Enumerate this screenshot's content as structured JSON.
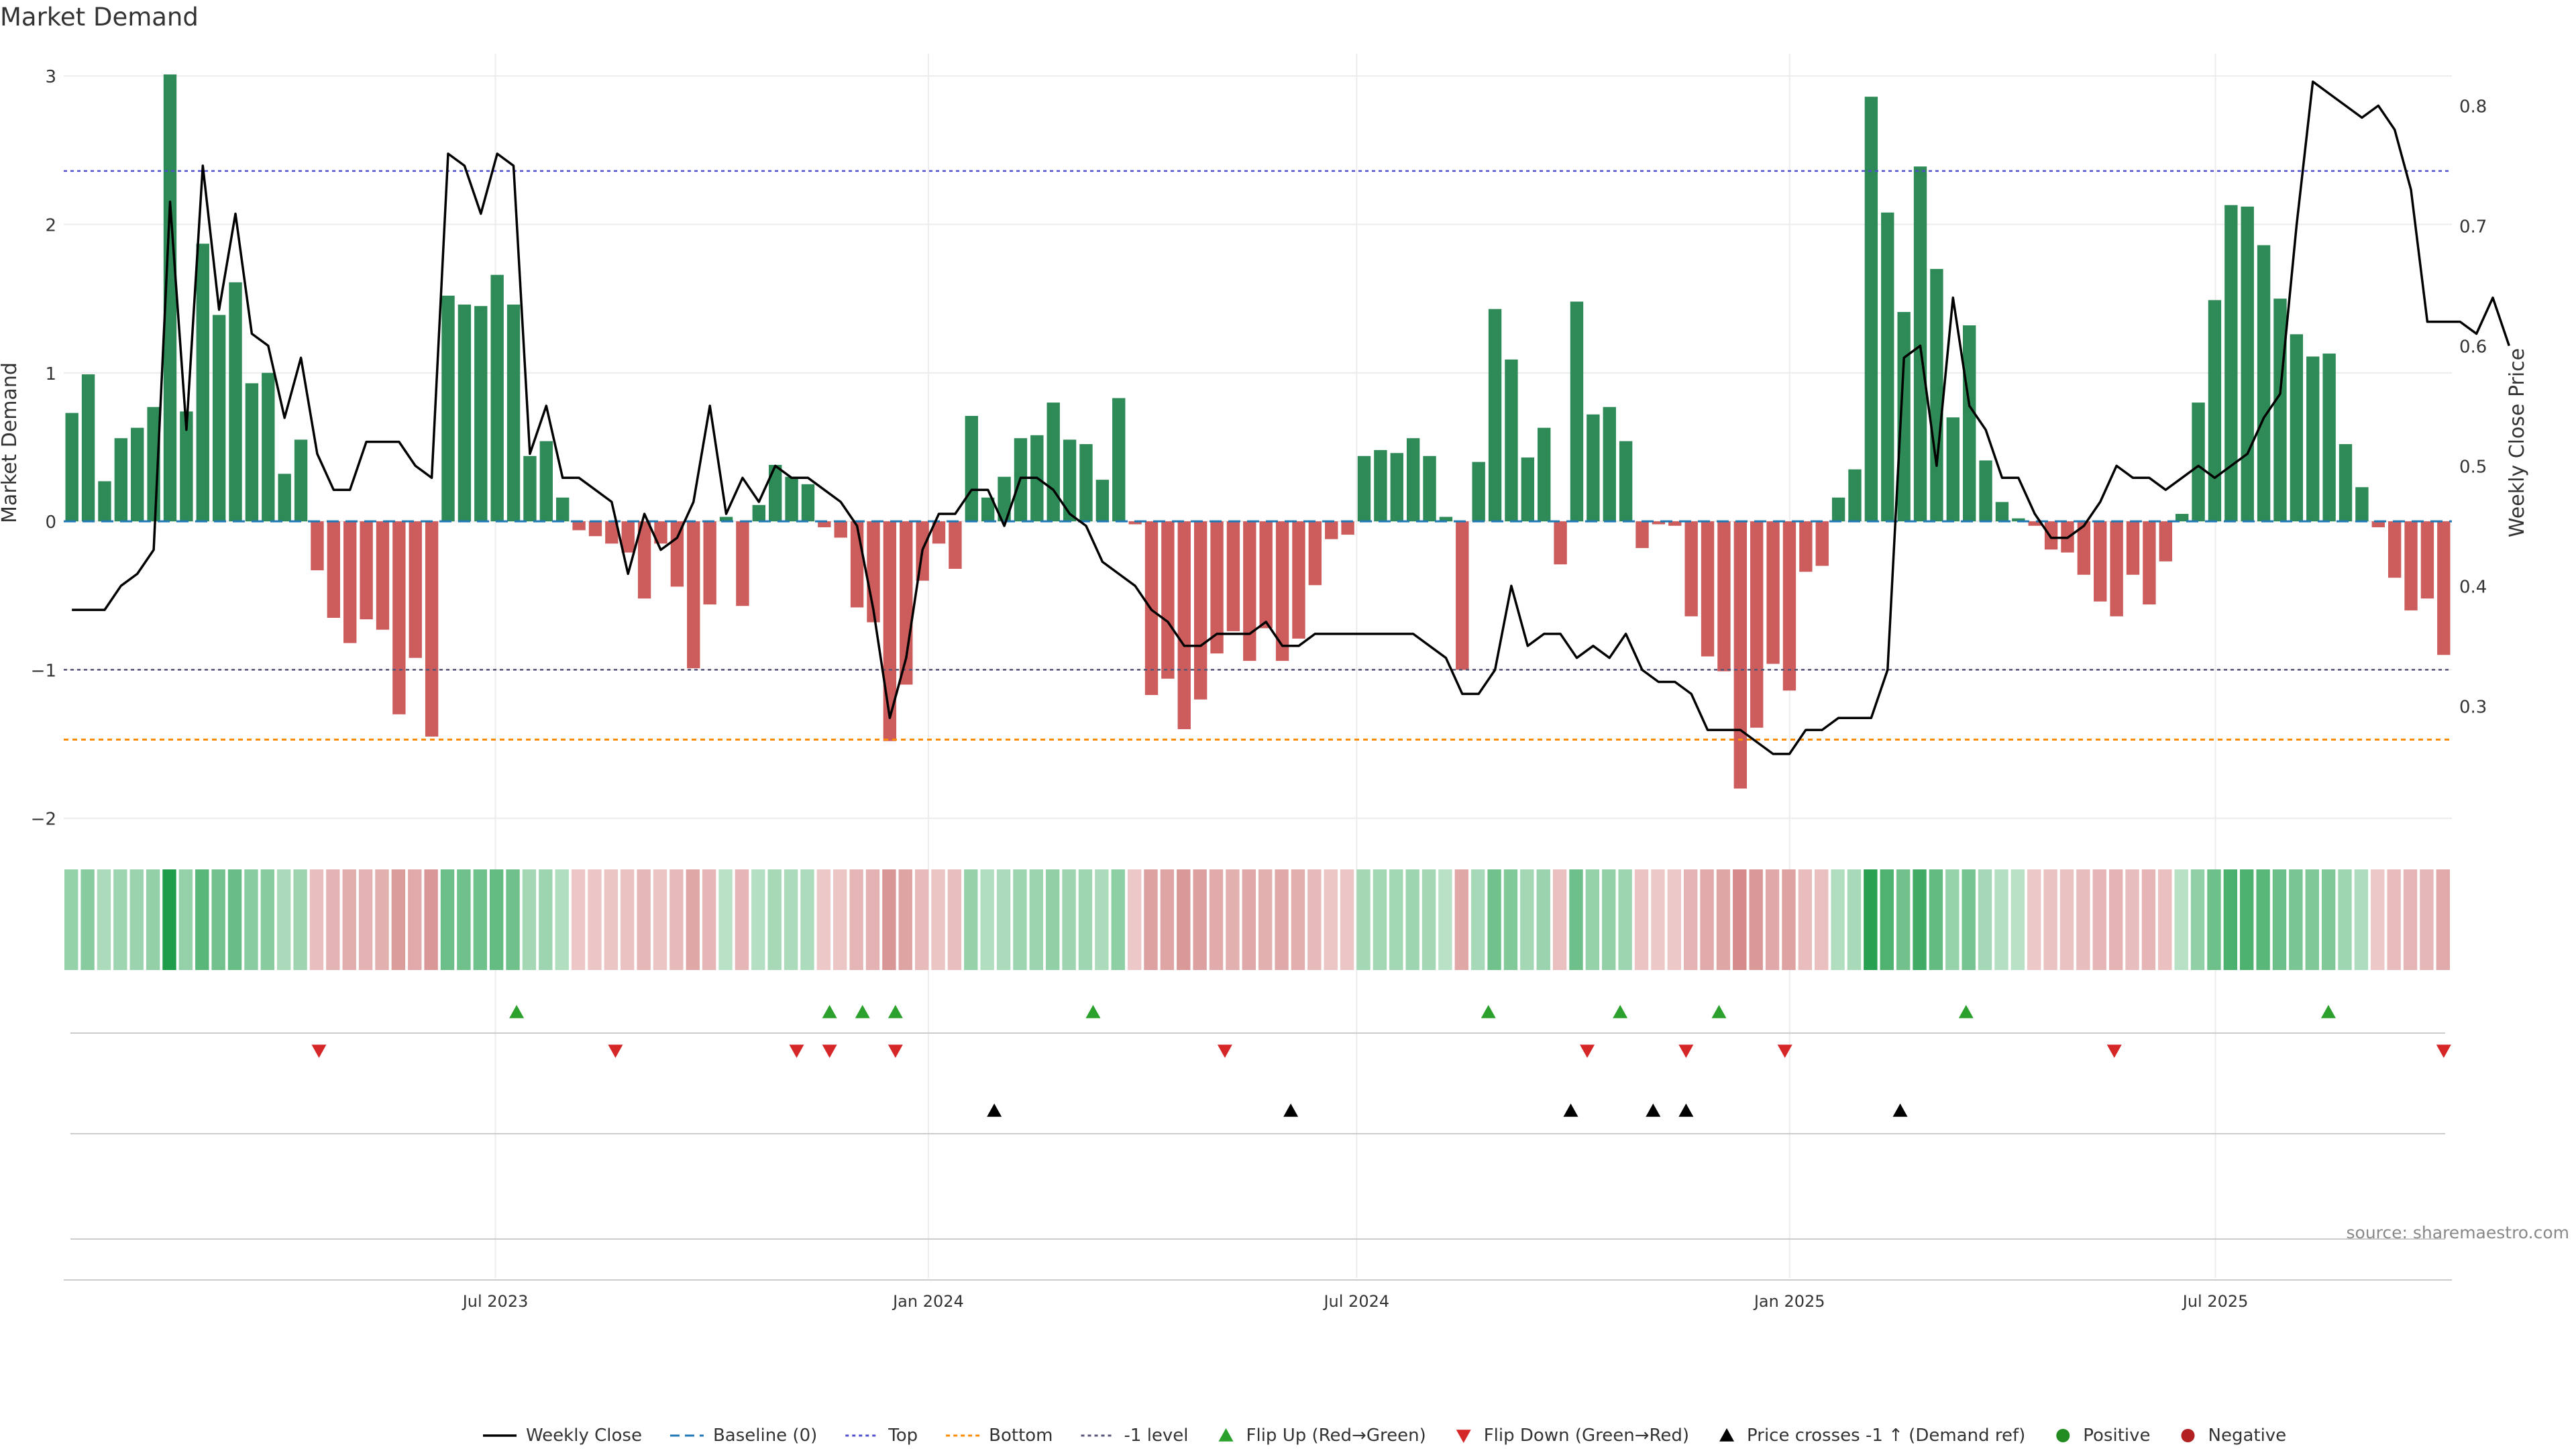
{
  "title": "Market Demand",
  "colors": {
    "positive": "#2e8b57",
    "negative": "#cd5c5c",
    "weekly_close": "#000000",
    "top_line": "#4f4fd0",
    "bottom_line": "#ff8c00",
    "minus1_line": "#555577",
    "flip_up": "#2ca02c",
    "flip_down": "#d62728",
    "price_cross": "#000000",
    "legend_positive": "#228b22",
    "legend_negative": "#b22222"
  },
  "chart_data": {
    "type": "bar",
    "title": "Market Demand",
    "ylabel": "Market Demand",
    "y2label": "Weekly Close Price",
    "ylim": [
      -2.2,
      3.15
    ],
    "y2lim": [
      0.1817,
      0.8433
    ],
    "yticks": [
      3,
      2,
      1,
      0,
      -1,
      -2
    ],
    "ytick_labels": [
      "3",
      "2",
      "1",
      "0",
      "−1",
      "−2"
    ],
    "y2ticks": [
      0.8,
      0.7,
      0.6,
      0.5,
      0.4,
      0.3
    ],
    "y2tick_labels": [
      "0.8",
      "0.7",
      "0.6",
      "0.5",
      "0.4",
      "0.3"
    ],
    "x_start": "2023-01-02",
    "x_end": "2025-10-06",
    "xticks": [
      "2023-07-01",
      "2024-01-01",
      "2024-07-01",
      "2025-01-01",
      "2025-07-01"
    ],
    "xtick_labels": [
      "Jul 2023",
      "Jan 2024",
      "Jul 2024",
      "Jan 2025",
      "Jul 2025"
    ],
    "levels": {
      "top": 2.36,
      "bottom": -1.47,
      "minus1": -1.0,
      "baseline": 0
    },
    "demand": [
      0.73,
      0.99,
      0.27,
      0.56,
      0.63,
      0.77,
      3.01,
      0.74,
      1.87,
      1.39,
      1.61,
      0.93,
      1.0,
      0.32,
      0.55,
      -0.33,
      -0.65,
      -0.82,
      -0.66,
      -0.73,
      -1.3,
      -0.92,
      -1.45,
      1.52,
      1.46,
      1.45,
      1.66,
      1.46,
      0.44,
      0.54,
      0.16,
      -0.06,
      -0.1,
      -0.15,
      -0.21,
      -0.52,
      -0.15,
      -0.44,
      -0.99,
      -0.56,
      0.03,
      -0.57,
      0.11,
      0.38,
      0.3,
      0.25,
      -0.04,
      -0.11,
      -0.58,
      -0.68,
      -1.48,
      -1.1,
      -0.4,
      -0.15,
      -0.32,
      0.71,
      0.16,
      0.3,
      0.56,
      0.58,
      0.8,
      0.55,
      0.52,
      0.28,
      0.83,
      -0.02,
      -1.17,
      -1.06,
      -1.4,
      -1.2,
      -0.89,
      -0.74,
      -0.94,
      -0.72,
      -0.94,
      -0.79,
      -0.43,
      -0.12,
      -0.09,
      0.44,
      0.48,
      0.46,
      0.56,
      0.44,
      0.03,
      -1.0,
      0.4,
      1.43,
      1.09,
      0.43,
      0.63,
      -0.29,
      1.48,
      0.72,
      0.77,
      0.54,
      -0.18,
      -0.02,
      -0.03,
      -0.64,
      -0.91,
      -1.01,
      -1.8,
      -1.39,
      -0.96,
      -1.14,
      -0.34,
      -0.3,
      0.16,
      0.35,
      2.86,
      2.08,
      1.41,
      2.39,
      1.7,
      0.7,
      1.32,
      0.41,
      0.13,
      0.02,
      -0.03,
      -0.19,
      -0.21,
      -0.36,
      -0.54,
      -0.64,
      -0.36,
      -0.56,
      -0.27,
      0.05,
      0.8,
      1.49,
      2.13,
      2.12,
      1.86,
      1.5,
      1.26,
      1.11,
      1.13,
      0.52,
      0.23,
      -0.04,
      -0.38,
      -0.6,
      -0.52,
      -0.9
    ],
    "weekly_close": [
      0.38,
      0.38,
      0.38,
      0.4,
      0.41,
      0.43,
      0.72,
      0.53,
      0.75,
      0.63,
      0.71,
      0.61,
      0.6,
      0.54,
      0.59,
      0.51,
      0.48,
      0.48,
      0.52,
      0.52,
      0.52,
      0.5,
      0.49,
      0.76,
      0.75,
      0.71,
      0.76,
      0.75,
      0.51,
      0.55,
      0.49,
      0.49,
      0.48,
      0.47,
      0.41,
      0.46,
      0.43,
      0.44,
      0.47,
      0.55,
      0.46,
      0.49,
      0.47,
      0.5,
      0.49,
      0.49,
      0.48,
      0.47,
      0.45,
      0.38,
      0.29,
      0.34,
      0.43,
      0.46,
      0.46,
      0.48,
      0.48,
      0.45,
      0.49,
      0.49,
      0.48,
      0.46,
      0.45,
      0.42,
      0.41,
      0.4,
      0.38,
      0.37,
      0.35,
      0.35,
      0.36,
      0.36,
      0.36,
      0.37,
      0.35,
      0.35,
      0.36,
      0.36,
      0.36,
      0.36,
      0.36,
      0.36,
      0.36,
      0.35,
      0.34,
      0.31,
      0.31,
      0.33,
      0.4,
      0.35,
      0.36,
      0.36,
      0.34,
      0.35,
      0.34,
      0.36,
      0.33,
      0.32,
      0.32,
      0.31,
      0.28,
      0.28,
      0.28,
      0.27,
      0.26,
      0.26,
      0.28,
      0.28,
      0.29,
      0.29,
      0.29,
      0.33,
      0.59,
      0.6,
      0.5,
      0.64,
      0.55,
      0.53,
      0.49,
      0.49,
      0.46,
      0.44,
      0.44,
      0.45,
      0.47,
      0.5,
      0.49,
      0.49,
      0.48,
      0.49,
      0.5,
      0.49,
      0.5,
      0.51,
      0.54,
      0.56,
      0.7,
      0.82,
      0.81,
      0.8,
      0.79,
      0.8,
      0.78,
      0.73,
      0.62,
      0.62,
      0.62,
      0.61,
      0.64,
      0.6
    ],
    "flip_up_dates": [
      "2023-07-10",
      "2023-11-20",
      "2023-12-04",
      "2023-12-18",
      "2024-03-11",
      "2024-08-26",
      "2024-10-21",
      "2024-12-02",
      "2025-03-17",
      "2025-08-18"
    ],
    "flip_down_dates": [
      "2023-04-17",
      "2023-08-21",
      "2023-11-06",
      "2023-11-20",
      "2023-12-18",
      "2024-05-06",
      "2024-10-07",
      "2024-11-18",
      "2024-12-30",
      "2025-05-19",
      "2025-10-06"
    ],
    "price_cross_dates": [
      "2024-01-29",
      "2024-06-03",
      "2024-09-30",
      "2024-11-04",
      "2024-11-18",
      "2025-02-17"
    ],
    "positive_dates": [],
    "negative_dates": []
  },
  "source": "source: sharemaestro.com",
  "legend": [
    {
      "key": "weekly-close",
      "label": "Weekly Close"
    },
    {
      "key": "baseline",
      "label": "Baseline (0)"
    },
    {
      "key": "top",
      "label": "Top"
    },
    {
      "key": "bottom",
      "label": "Bottom"
    },
    {
      "key": "minus1",
      "label": "-1 level"
    },
    {
      "key": "flip-up",
      "label": "Flip Up (Red→Green)"
    },
    {
      "key": "flip-down",
      "label": "Flip Down (Green→Red)"
    },
    {
      "key": "price-cross",
      "label": "Price crosses -1 ↑ (Demand ref)"
    },
    {
      "key": "positive",
      "label": "Positive"
    },
    {
      "key": "negative",
      "label": "Negative"
    }
  ]
}
